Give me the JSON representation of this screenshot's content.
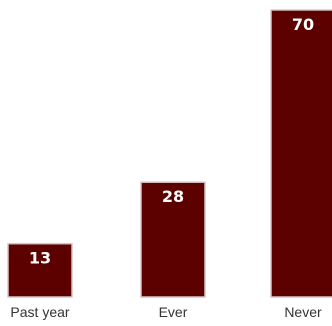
{
  "chart_data": {
    "type": "bar",
    "categories": [
      "Past year",
      "Ever",
      "Never"
    ],
    "values": [
      13,
      28,
      70
    ],
    "title": "",
    "xlabel": "",
    "ylabel": "",
    "ylim": [
      0,
      70
    ],
    "grid": false,
    "data_labels": true,
    "colors": {
      "bar_fill": "#5c0000",
      "bar_border": "#d9c3c3",
      "label_text": "#ffffff",
      "category_text": "#333333"
    }
  }
}
